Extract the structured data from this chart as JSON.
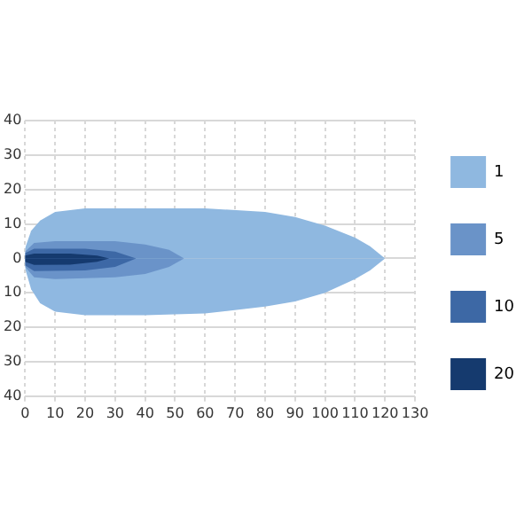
{
  "chart_data": {
    "type": "area",
    "xlim": [
      0,
      130
    ],
    "xticks": [
      0,
      10,
      20,
      30,
      40,
      50,
      60,
      70,
      80,
      90,
      100,
      110,
      120,
      130
    ],
    "ylim": [
      -40,
      40
    ],
    "yticks": [
      40,
      30,
      20,
      10,
      0,
      {
        "value": -10,
        "label": "10"
      },
      {
        "value": -20,
        "label": "20"
      },
      {
        "value": -30,
        "label": "30"
      },
      {
        "value": -40,
        "label": "40"
      }
    ],
    "grid": true,
    "legend": "right",
    "series": [
      {
        "name": "1",
        "color": "#8fb8e0",
        "x": [
          0,
          2,
          5,
          10,
          20,
          40,
          60,
          80,
          90,
          100,
          110,
          115,
          120
        ],
        "values": [
          3,
          8,
          11,
          13.5,
          14.5,
          14.5,
          14.5,
          13.5,
          12,
          9.5,
          6,
          3.5,
          0
        ]
      },
      {
        "color": "#8fb8e1",
        "x": [
          0,
          2,
          5,
          10,
          20,
          40,
          60,
          80,
          90,
          100,
          110,
          115,
          120
        ],
        "values": [
          -3,
          -9,
          -13,
          -15.5,
          -16.5,
          -16.5,
          -16,
          -14,
          -12.5,
          -10,
          -6,
          -3.5,
          0
        ]
      },
      {
        "name": "5",
        "color": "#6a93c8",
        "x": [
          0,
          3,
          10,
          30,
          40,
          48,
          53
        ],
        "values": [
          2,
          4.5,
          5,
          5,
          4,
          2.5,
          0
        ]
      },
      {
        "color": "#6a93c9",
        "x": [
          0,
          3,
          10,
          30,
          40,
          48,
          53
        ],
        "values": [
          -2.5,
          -5.5,
          -6,
          -5.5,
          -4.5,
          -2.5,
          0
        ]
      },
      {
        "name": "10",
        "color": "#3d68a5",
        "x": [
          0,
          3,
          20,
          30,
          37
        ],
        "values": [
          1.5,
          2.8,
          2.8,
          2,
          0
        ]
      },
      {
        "color": "#3d68a6",
        "x": [
          0,
          3,
          20,
          30,
          37
        ],
        "values": [
          -2,
          -3.7,
          -3.5,
          -2.5,
          0
        ]
      },
      {
        "name": "20",
        "color": "#153a6e",
        "x": [
          0,
          3,
          15,
          24,
          28
        ],
        "values": [
          0.8,
          1.4,
          1.4,
          0.8,
          0
        ]
      },
      {
        "color": "#153a6f",
        "x": [
          0,
          3,
          15,
          24,
          28
        ],
        "values": [
          -1,
          -1.9,
          -1.8,
          -1,
          0
        ]
      }
    ]
  }
}
